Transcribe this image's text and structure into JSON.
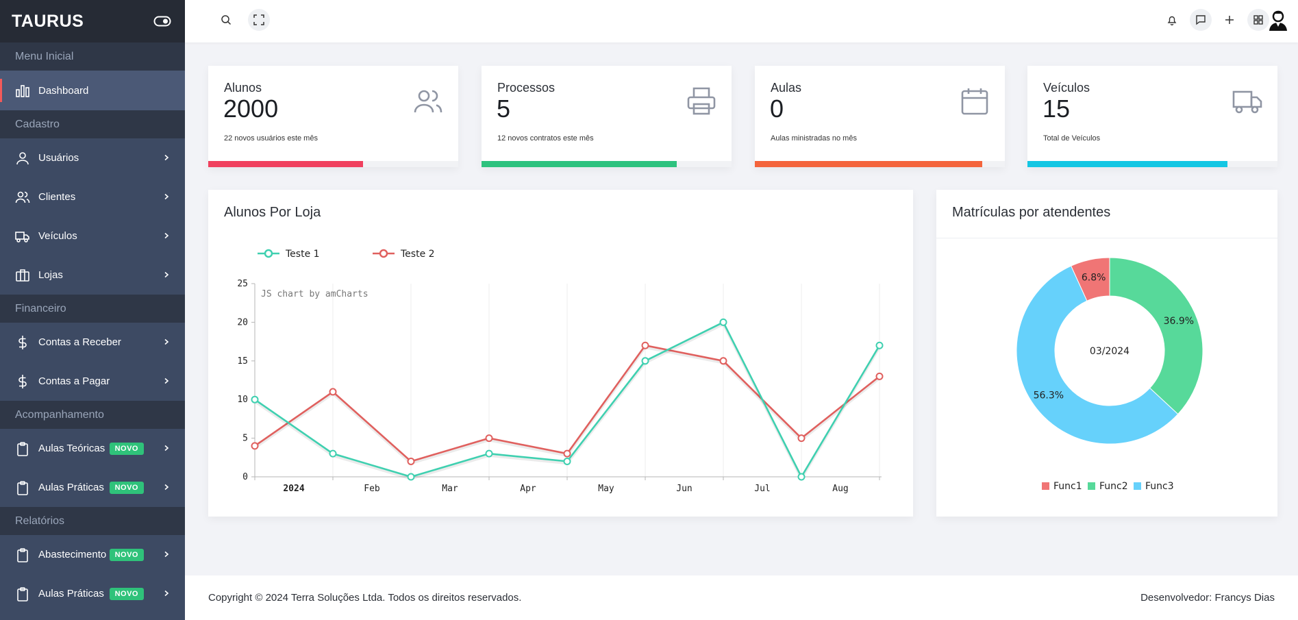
{
  "brand": {
    "name": "TAURUS"
  },
  "sidebar": {
    "sections": [
      {
        "title": "Menu Inicial",
        "items": [
          {
            "label": "Dashboard",
            "icon": "bar-chart-icon",
            "badge": ""
          }
        ]
      },
      {
        "title": "Cadastro",
        "items": [
          {
            "label": "Usuários",
            "icon": "user-icon",
            "badge": ""
          },
          {
            "label": "Clientes",
            "icon": "users-icon",
            "badge": ""
          },
          {
            "label": "Veículos",
            "icon": "truck-icon",
            "badge": ""
          },
          {
            "label": "Lojas",
            "icon": "briefcase-icon",
            "badge": ""
          }
        ]
      },
      {
        "title": "Financeiro",
        "items": [
          {
            "label": "Contas a Receber",
            "icon": "dollar-icon",
            "badge": ""
          },
          {
            "label": "Contas a Pagar",
            "icon": "dollar-icon",
            "badge": ""
          }
        ]
      },
      {
        "title": "Acompanhamento",
        "items": [
          {
            "label": "Aulas Teóricas",
            "icon": "clipboard-icon",
            "badge": "NOVO"
          },
          {
            "label": "Aulas Práticas",
            "icon": "clipboard-icon",
            "badge": "NOVO"
          }
        ]
      },
      {
        "title": "Relatórios",
        "items": [
          {
            "label": "Abastecimento",
            "icon": "clipboard-icon",
            "badge": "NOVO"
          },
          {
            "label": "Aulas Práticas",
            "icon": "clipboard-icon",
            "badge": "NOVO"
          }
        ]
      }
    ]
  },
  "stats": [
    {
      "title": "Alunos",
      "value": "2000",
      "sub": "22 novos usuários este mês",
      "icon": "users-icon",
      "color": "#f0405e",
      "progress": 0.62
    },
    {
      "title": "Processos",
      "value": "5",
      "sub": "12 novos contratos este mês",
      "icon": "printer-icon",
      "color": "#2ec27e",
      "progress": 0.78
    },
    {
      "title": "Aulas",
      "value": "0",
      "sub": "Aulas ministradas no mês",
      "icon": "calendar-icon",
      "color": "#f4643c",
      "progress": 0.91
    },
    {
      "title": "Veículos",
      "value": "15",
      "sub": "Total de Veículos",
      "icon": "truck-icon",
      "color": "#14c6e3",
      "progress": 0.8
    }
  ],
  "line_panel": {
    "title": "Alunos Por Loja",
    "credit": "JS chart by amCharts"
  },
  "donut_panel": {
    "title": "Matrículas por atendentes"
  },
  "chart_data": [
    {
      "type": "line",
      "title": "Alunos Por Loja",
      "x_labels": [
        "2024",
        "Feb",
        "Mar",
        "Apr",
        "May",
        "Jun",
        "Jul",
        "Aug"
      ],
      "ylim": [
        0,
        25
      ],
      "yticks": [
        0,
        5,
        10,
        15,
        20,
        25
      ],
      "grid": true,
      "legend": "top-left",
      "series": [
        {
          "name": "Teste 1",
          "color": "#3fd0b0",
          "values": [
            10,
            3,
            0,
            3,
            2,
            15,
            20,
            0,
            17
          ]
        },
        {
          "name": "Teste 2",
          "color": "#e0605e",
          "values": [
            4,
            11,
            2,
            5,
            3,
            17,
            15,
            5,
            13
          ]
        }
      ]
    },
    {
      "type": "pie",
      "title": "Matrículas por atendentes",
      "center_label": "03/2024",
      "legend": "bottom",
      "slices": [
        {
          "name": "Func1",
          "value": 6.8,
          "label": "6.8%",
          "color": "#f07575"
        },
        {
          "name": "Func2",
          "value": 36.9,
          "label": "36.9%",
          "color": "#57d99a"
        },
        {
          "name": "Func3",
          "value": 56.3,
          "label": "56.3%",
          "color": "#66d1fb"
        }
      ]
    }
  ],
  "footer": {
    "copyright": "Copyright © 2024 Terra Soluções Ltda. Todos os direitos reservados.",
    "developer": "Desenvolvedor: Francys Dias"
  }
}
